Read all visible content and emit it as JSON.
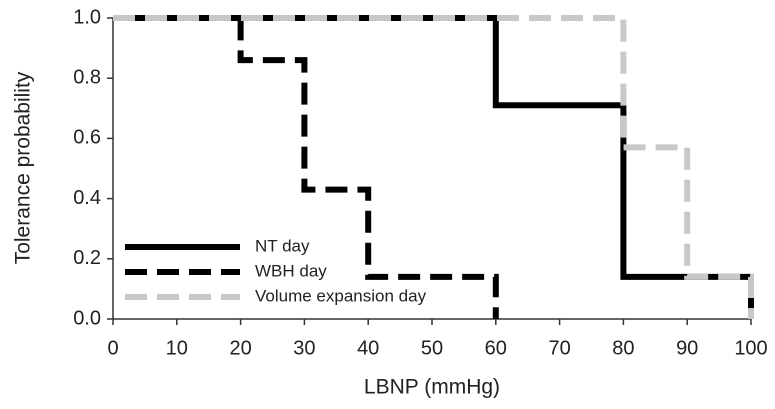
{
  "chart_data": {
    "type": "step",
    "xlabel": "LBNP (mmHg)",
    "ylabel": "Tolerance probability",
    "xlim": [
      0,
      100
    ],
    "xticks": [
      0,
      10,
      20,
      30,
      40,
      50,
      60,
      70,
      80,
      90,
      100
    ],
    "ylim": [
      0,
      1
    ],
    "yticks": [
      {
        "value": 0,
        "label": "0.0"
      },
      {
        "value": 0.2,
        "label": "0.2"
      },
      {
        "value": 0.4,
        "label": "0.4"
      },
      {
        "value": 0.6,
        "label": "0.6"
      },
      {
        "value": 0.8,
        "label": "0.8"
      },
      {
        "value": 1,
        "label": "1.0"
      }
    ],
    "legend": "lower left",
    "series": [
      {
        "name": "NT day",
        "color": "#000000",
        "style": "solid",
        "x": [
          0,
          60,
          80,
          100
        ],
        "values": [
          1.0,
          0.71,
          0.14,
          0
        ]
      },
      {
        "name": "WBH day",
        "color": "#000000",
        "style": "dashed",
        "x": [
          0,
          20,
          30,
          40,
          60
        ],
        "values": [
          1.0,
          0.86,
          0.43,
          0.14,
          0
        ]
      },
      {
        "name": "Volume expansion day",
        "color": "#c8c8c8",
        "style": "dashed",
        "x": [
          0,
          80,
          90,
          100
        ],
        "values": [
          1.0,
          0.57,
          0.14,
          0
        ]
      }
    ]
  }
}
